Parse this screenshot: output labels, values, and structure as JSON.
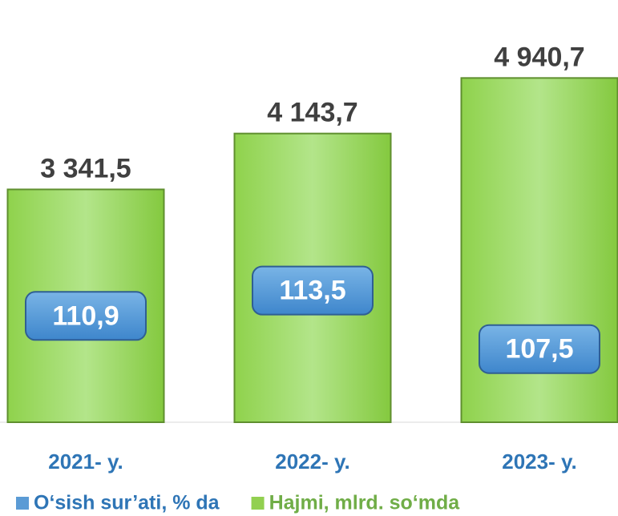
{
  "chart_data": {
    "type": "bar",
    "categories": [
      "2021- y.",
      "2022- y.",
      "2023- y."
    ],
    "series": [
      {
        "name": "O‘sish sur’ati, % da",
        "color": "#5b9bd5",
        "axis": "y2",
        "values": [
          110.9,
          113.5,
          107.5
        ],
        "value_labels": [
          "110,9",
          "113,5",
          "107,5"
        ]
      },
      {
        "name": "Hajmi, mlrd. so‘mda",
        "color": "#92d050",
        "values": [
          3341.5,
          4143.7,
          4940.7
        ],
        "value_labels": [
          "3 341,5",
          "4 143,7",
          "4 940,7"
        ]
      }
    ],
    "ylim": [
      0,
      5600
    ],
    "y2lim": [
      100,
      140
    ],
    "legend": "bottom"
  }
}
